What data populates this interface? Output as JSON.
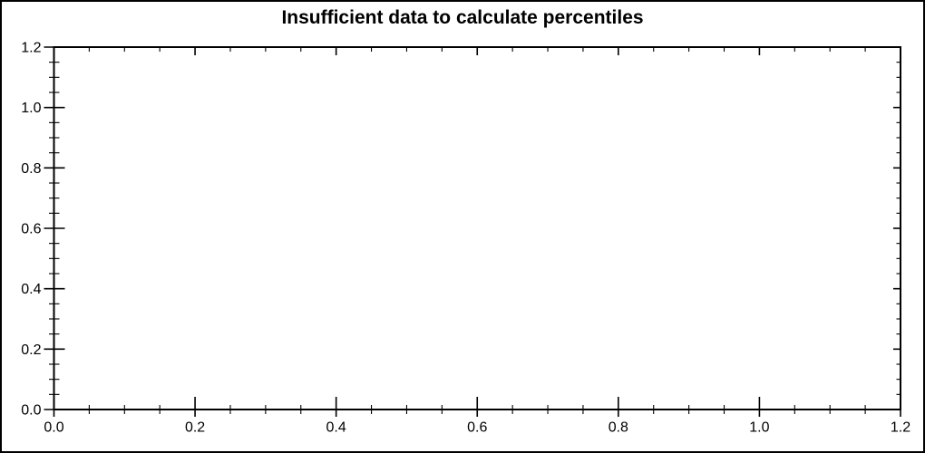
{
  "figure": {
    "background": "#ffffff",
    "border_color": "#000000"
  },
  "chart_data": {
    "type": "scatter",
    "title": "Insufficient data to calculate percentiles",
    "series": [],
    "xlabel": "",
    "ylabel": "",
    "xlim": [
      0.0,
      1.2
    ],
    "ylim": [
      0.0,
      1.2
    ],
    "x_major_ticks": [
      0.0,
      0.2,
      0.4,
      0.6,
      0.8,
      1.0,
      1.2
    ],
    "x_tick_labels": [
      "0.0",
      "0.2",
      "0.4",
      "0.6",
      "0.8",
      "1.0",
      "1.2"
    ],
    "y_major_ticks": [
      0.0,
      0.2,
      0.4,
      0.6,
      0.8,
      1.0,
      1.2
    ],
    "y_tick_labels": [
      "0.0",
      "0.2",
      "0.4",
      "0.6",
      "0.8",
      "1.0",
      "1.2"
    ],
    "minor_tick_step": 0.05,
    "grid": false,
    "frame": true,
    "legend": null,
    "axis_color": "#000000",
    "text_color": "#000000"
  }
}
